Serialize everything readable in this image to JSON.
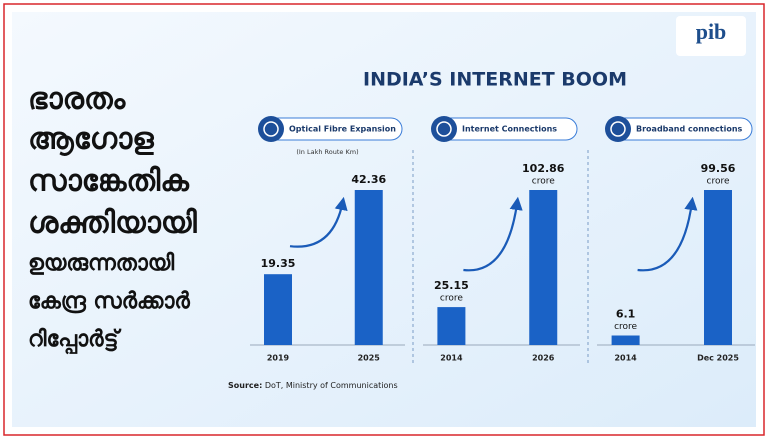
{
  "logo": "pib",
  "headline": [
    "ഭാരതം",
    "ആഗോള",
    "സാങ്കേതിക",
    "ശക്തിയായി",
    "ഉയരുന്നതായി",
    "കേന്ദ്ര സർക്കാർ",
    "റിപ്പോർട്ട്"
  ],
  "title": "INDIA’S INTERNET BOOM",
  "source_label": "Source:",
  "source_text": "DoT, Ministry of Communications",
  "chart_data": [
    {
      "type": "bar",
      "title": "Optical Fibre Expansion",
      "subtitle": "(In Lakh Route Km)",
      "categories": [
        "2019",
        "2025"
      ],
      "values": [
        19.35,
        42.36
      ],
      "color": "#1a62c6"
    },
    {
      "type": "bar",
      "title": "Internet Connections",
      "unit": "crore",
      "categories": [
        "2014",
        "2026"
      ],
      "values": [
        25.15,
        102.86
      ],
      "color": "#1a62c6"
    },
    {
      "type": "bar",
      "title": "Broadband connections",
      "unit": "crore",
      "categories": [
        "2014",
        "Dec 2025"
      ],
      "values": [
        6.1,
        99.56
      ],
      "color": "#1a62c6"
    }
  ]
}
